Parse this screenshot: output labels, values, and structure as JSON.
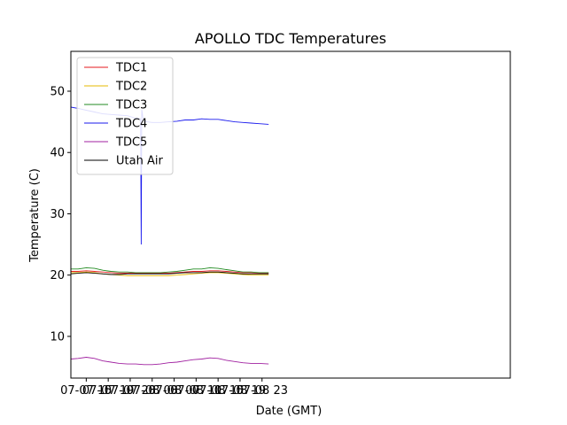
{
  "chart_data": {
    "type": "line",
    "title": "APOLLO TDC Temperatures",
    "xlabel": "Date (GMT)",
    "ylabel": "Temperature (C)",
    "xlim": [
      12.2,
      92.2
    ],
    "ylim": [
      3.2,
      56.5
    ],
    "grid": false,
    "legend_position": "top-left",
    "x_unit": "hours since 07-07 00:00 GMT",
    "x_ticks": [
      {
        "value": 15,
        "label": "07-07 15"
      },
      {
        "value": 19,
        "label": "07-07 19"
      },
      {
        "value": 23,
        "label": "07-07 23"
      },
      {
        "value": 27,
        "label": "07-08 03"
      },
      {
        "value": 31,
        "label": "07-08 07"
      },
      {
        "value": 35,
        "label": "07-08 11"
      },
      {
        "value": 39,
        "label": "07-08 15"
      },
      {
        "value": 43,
        "label": "07-08 19"
      },
      {
        "value": 47,
        "label": "07-08 23"
      }
    ],
    "y_ticks": [
      {
        "value": 10,
        "label": "10"
      },
      {
        "value": 20,
        "label": "20"
      },
      {
        "value": 30,
        "label": "30"
      },
      {
        "value": 40,
        "label": "40"
      },
      {
        "value": 50,
        "label": "50"
      }
    ],
    "series": [
      {
        "name": "TDC1",
        "color": "#e41a1c",
        "x": [
          12.2,
          13.5,
          15.0,
          16.5,
          18.0,
          19.5,
          21.0,
          22.5,
          24.0,
          25.5,
          27.0,
          28.5,
          30.0,
          31.5,
          33.0,
          34.5,
          36.0,
          37.5,
          39.0,
          40.5,
          42.0,
          43.5,
          45.0,
          46.5,
          48.2
        ],
        "y": [
          20.6,
          20.6,
          20.7,
          20.6,
          20.5,
          20.4,
          20.3,
          20.3,
          20.3,
          20.3,
          20.3,
          20.3,
          20.3,
          20.4,
          20.5,
          20.6,
          20.6,
          20.7,
          20.7,
          20.6,
          20.5,
          20.4,
          20.4,
          20.3,
          20.3
        ]
      },
      {
        "name": "TDC2",
        "color": "#e6b800",
        "x": [
          12.2,
          13.5,
          15.0,
          16.5,
          18.0,
          19.5,
          21.0,
          22.5,
          24.0,
          25.5,
          27.0,
          28.5,
          30.0,
          31.5,
          33.0,
          34.5,
          36.0,
          37.5,
          39.0,
          40.5,
          42.0,
          43.5,
          45.0,
          46.5,
          48.2
        ],
        "y": [
          20.4,
          20.4,
          20.5,
          20.4,
          20.2,
          20.1,
          20.0,
          19.9,
          19.9,
          19.9,
          19.9,
          19.9,
          19.9,
          20.0,
          20.1,
          20.2,
          20.3,
          20.4,
          20.4,
          20.3,
          20.2,
          20.1,
          20.0,
          20.0,
          20.0
        ]
      },
      {
        "name": "TDC3",
        "color": "#228b22",
        "x": [
          12.2,
          13.5,
          15.0,
          16.5,
          18.0,
          19.5,
          21.0,
          22.5,
          24.0,
          25.5,
          27.0,
          28.5,
          30.0,
          31.5,
          33.0,
          34.5,
          36.0,
          37.5,
          39.0,
          40.5,
          42.0,
          43.5,
          45.0,
          46.5,
          48.2
        ],
        "y": [
          21.0,
          21.0,
          21.2,
          21.1,
          20.8,
          20.6,
          20.5,
          20.5,
          20.4,
          20.4,
          20.4,
          20.4,
          20.5,
          20.6,
          20.8,
          21.0,
          21.0,
          21.2,
          21.1,
          20.9,
          20.7,
          20.5,
          20.5,
          20.4,
          20.4
        ]
      },
      {
        "name": "TDC4",
        "color": "#1a1aee",
        "x": [
          12.2,
          13.5,
          15.0,
          16.5,
          18.0,
          19.5,
          21.0,
          22.5,
          24.0,
          24.9,
          25.0,
          25.1,
          25.2,
          25.3,
          25.5,
          26.0,
          27.0,
          28.5,
          30.0,
          31.5,
          33.0,
          34.5,
          36.0,
          37.5,
          39.0,
          40.5,
          42.0,
          43.5,
          45.0,
          46.5,
          48.2
        ],
        "y": [
          47.4,
          47.2,
          46.9,
          46.6,
          46.3,
          46.2,
          46.1,
          46.0,
          45.6,
          45.5,
          25.0,
          47.0,
          46.5,
          45.7,
          45.3,
          45.0,
          44.9,
          44.9,
          45.0,
          45.1,
          45.3,
          45.3,
          45.5,
          45.4,
          45.4,
          45.2,
          45.0,
          44.9,
          44.8,
          44.7,
          44.6
        ]
      },
      {
        "name": "TDC5",
        "color": "#a020a0",
        "x": [
          12.2,
          13.5,
          15.0,
          16.5,
          18.0,
          19.5,
          21.0,
          22.5,
          24.0,
          25.5,
          27.0,
          28.5,
          30.0,
          31.5,
          33.0,
          34.5,
          36.0,
          37.5,
          39.0,
          40.5,
          42.0,
          43.5,
          45.0,
          46.5,
          48.2
        ],
        "y": [
          6.3,
          6.4,
          6.6,
          6.4,
          6.0,
          5.8,
          5.6,
          5.5,
          5.5,
          5.4,
          5.4,
          5.5,
          5.7,
          5.8,
          6.0,
          6.2,
          6.3,
          6.5,
          6.4,
          6.1,
          5.9,
          5.7,
          5.6,
          5.6,
          5.5
        ]
      },
      {
        "name": "Utah Air",
        "color": "#000000",
        "x": [
          12.2,
          13.5,
          15.0,
          16.5,
          18.0,
          19.5,
          21.0,
          22.5,
          24.0,
          25.5,
          27.0,
          28.5,
          30.0,
          31.5,
          33.0,
          34.5,
          36.0,
          37.5,
          39.0,
          40.5,
          42.0,
          43.5,
          45.0,
          46.5,
          48.2
        ],
        "y": [
          20.2,
          20.3,
          20.4,
          20.3,
          20.2,
          20.1,
          20.1,
          20.2,
          20.2,
          20.2,
          20.2,
          20.2,
          20.2,
          20.3,
          20.4,
          20.4,
          20.4,
          20.5,
          20.5,
          20.4,
          20.3,
          20.2,
          20.2,
          20.2,
          20.2
        ]
      }
    ]
  }
}
